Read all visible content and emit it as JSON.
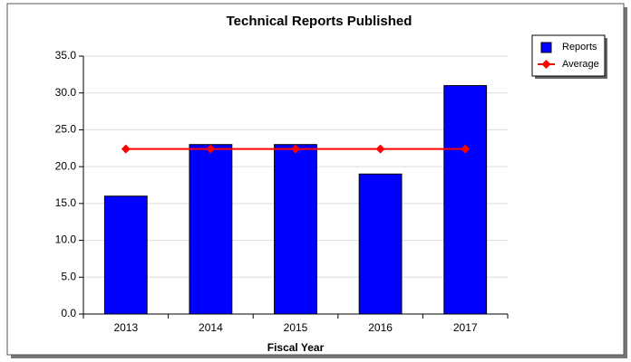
{
  "chart_data": {
    "type": "bar",
    "title": "Technical Reports Published",
    "x_label": "Fiscal Year",
    "categories": [
      "2013",
      "2014",
      "2015",
      "2016",
      "2017"
    ],
    "series": [
      {
        "name": "Reports",
        "color": "#0000ff",
        "type": "bar",
        "values": [
          16,
          23,
          23,
          19,
          31
        ]
      },
      {
        "name": "Average",
        "color": "#ff0000",
        "type": "line",
        "values": [
          22.4,
          22.4,
          22.4,
          22.4,
          22.4
        ]
      }
    ],
    "ylim": [
      0,
      35
    ],
    "yticks": [
      {
        "value": 0,
        "label": "0.0"
      },
      {
        "value": 5,
        "label": "5.0"
      },
      {
        "value": 10,
        "label": "10.0"
      },
      {
        "value": 15,
        "label": "15.0"
      },
      {
        "value": 20,
        "label": "20.0"
      },
      {
        "value": 25,
        "label": "25.0"
      },
      {
        "value": 30,
        "label": "30.0"
      },
      {
        "value": 35,
        "label": "35.0"
      }
    ],
    "grid": true,
    "legend": "top-right"
  }
}
